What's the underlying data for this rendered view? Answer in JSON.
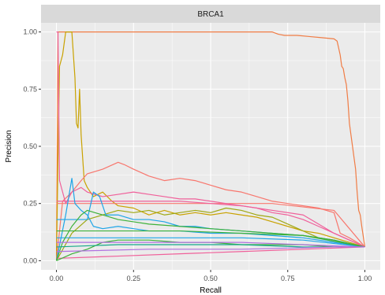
{
  "chart_data": {
    "type": "line",
    "facet_title": "BRCA1",
    "xlabel": "Recall",
    "ylabel": "Precision",
    "xlim": [
      -0.05,
      1.05
    ],
    "ylim": [
      -0.04,
      1.04
    ],
    "x_ticks": [
      0,
      0.25,
      0.5,
      0.75,
      1
    ],
    "x_tick_labels": [
      "0.00",
      "0.25",
      "0.50",
      "0.75",
      "1.00"
    ],
    "y_ticks": [
      0,
      0.25,
      0.5,
      0.75,
      1
    ],
    "y_tick_labels": [
      "0.00",
      "0.25",
      "0.50",
      "0.75",
      "1.00"
    ],
    "grid": true,
    "legend": "none",
    "colors": {
      "panel_bg": "#ebebeb",
      "strip_bg": "#d9d9d9",
      "grid_major": "#ffffff",
      "salmon": "#f8766d",
      "orange": "#f07c45",
      "gold": "#c9a200",
      "olive": "#9fa814",
      "green": "#3db13a",
      "teal": "#14a88a",
      "blue": "#1ea5e8",
      "purple": "#b070e0",
      "pink": "#f0609a"
    },
    "series": [
      {
        "color": "#f07c45",
        "points": [
          [
            0.0,
            0.02
          ],
          [
            0.005,
            1.0
          ],
          [
            0.1,
            1.0
          ],
          [
            0.3,
            1.0
          ],
          [
            0.5,
            1.0
          ],
          [
            0.7,
            1.0
          ],
          [
            0.72,
            0.99
          ],
          [
            0.74,
            0.985
          ],
          [
            0.78,
            0.985
          ],
          [
            0.82,
            0.98
          ],
          [
            0.86,
            0.975
          ],
          [
            0.9,
            0.97
          ],
          [
            0.91,
            0.96
          ],
          [
            0.915,
            0.93
          ],
          [
            0.92,
            0.9
          ],
          [
            0.925,
            0.85
          ],
          [
            0.93,
            0.84
          ],
          [
            0.935,
            0.8
          ],
          [
            0.94,
            0.77
          ],
          [
            0.945,
            0.7
          ],
          [
            0.95,
            0.6
          ],
          [
            0.955,
            0.55
          ],
          [
            0.96,
            0.5
          ],
          [
            0.965,
            0.45
          ],
          [
            0.97,
            0.4
          ],
          [
            0.975,
            0.3
          ],
          [
            0.98,
            0.22
          ],
          [
            0.985,
            0.2
          ],
          [
            0.99,
            0.15
          ],
          [
            1.0,
            0.06
          ]
        ]
      },
      {
        "color": "#c9a200",
        "points": [
          [
            0.0,
            0.0
          ],
          [
            0.005,
            0.45
          ],
          [
            0.01,
            0.85
          ],
          [
            0.02,
            0.9
          ],
          [
            0.03,
            1.0
          ],
          [
            0.05,
            1.0
          ],
          [
            0.06,
            0.8
          ],
          [
            0.065,
            0.6
          ],
          [
            0.07,
            0.58
          ],
          [
            0.075,
            0.75
          ],
          [
            0.08,
            0.55
          ],
          [
            0.09,
            0.35
          ],
          [
            0.1,
            0.32
          ],
          [
            0.12,
            0.28
          ],
          [
            0.15,
            0.3
          ],
          [
            0.18,
            0.26
          ],
          [
            0.2,
            0.24
          ],
          [
            0.25,
            0.23
          ],
          [
            0.3,
            0.2
          ],
          [
            0.35,
            0.22
          ],
          [
            0.4,
            0.2
          ],
          [
            0.45,
            0.21
          ],
          [
            0.5,
            0.2
          ],
          [
            0.55,
            0.21
          ],
          [
            0.6,
            0.2
          ],
          [
            0.65,
            0.19
          ],
          [
            0.7,
            0.17
          ],
          [
            0.75,
            0.15
          ],
          [
            0.8,
            0.13
          ],
          [
            0.85,
            0.12
          ],
          [
            0.9,
            0.1
          ],
          [
            0.95,
            0.08
          ],
          [
            1.0,
            0.06
          ]
        ]
      },
      {
        "color": "#9fa814",
        "points": [
          [
            0.0,
            0.0
          ],
          [
            0.05,
            0.12
          ],
          [
            0.1,
            0.18
          ],
          [
            0.15,
            0.2
          ],
          [
            0.2,
            0.22
          ],
          [
            0.25,
            0.21
          ],
          [
            0.3,
            0.22
          ],
          [
            0.35,
            0.2
          ],
          [
            0.4,
            0.21
          ],
          [
            0.45,
            0.22
          ],
          [
            0.5,
            0.21
          ],
          [
            0.55,
            0.23
          ],
          [
            0.6,
            0.22
          ],
          [
            0.65,
            0.2
          ],
          [
            0.7,
            0.19
          ],
          [
            0.75,
            0.16
          ],
          [
            0.8,
            0.13
          ],
          [
            0.85,
            0.1
          ],
          [
            0.9,
            0.09
          ],
          [
            0.95,
            0.07
          ],
          [
            1.0,
            0.06
          ]
        ]
      },
      {
        "color": "#f8766d",
        "points": [
          [
            0.0,
            0.0
          ],
          [
            0.02,
            0.26
          ],
          [
            0.05,
            0.3
          ],
          [
            0.08,
            0.35
          ],
          [
            0.1,
            0.38
          ],
          [
            0.15,
            0.4
          ],
          [
            0.2,
            0.43
          ],
          [
            0.22,
            0.42
          ],
          [
            0.25,
            0.4
          ],
          [
            0.3,
            0.37
          ],
          [
            0.35,
            0.35
          ],
          [
            0.4,
            0.36
          ],
          [
            0.45,
            0.35
          ],
          [
            0.5,
            0.33
          ],
          [
            0.55,
            0.31
          ],
          [
            0.6,
            0.3
          ],
          [
            0.65,
            0.28
          ],
          [
            0.7,
            0.26
          ],
          [
            0.75,
            0.25
          ],
          [
            0.8,
            0.24
          ],
          [
            0.85,
            0.23
          ],
          [
            0.9,
            0.21
          ],
          [
            0.92,
            0.12
          ],
          [
            0.95,
            0.1
          ],
          [
            1.0,
            0.06
          ]
        ]
      },
      {
        "color": "#f8766d",
        "points": [
          [
            0.0,
            0.25
          ],
          [
            0.1,
            0.25
          ],
          [
            0.3,
            0.25
          ],
          [
            0.5,
            0.25
          ],
          [
            0.7,
            0.25
          ],
          [
            0.9,
            0.22
          ],
          [
            1.0,
            0.06
          ]
        ]
      },
      {
        "color": "#f0609a",
        "points": [
          [
            0.0,
            1.0
          ],
          [
            0.005,
            1.0
          ],
          [
            0.01,
            0.35
          ],
          [
            0.02,
            0.3
          ],
          [
            0.03,
            0.25
          ],
          [
            0.05,
            0.3
          ],
          [
            0.08,
            0.32
          ],
          [
            0.1,
            0.3
          ],
          [
            0.15,
            0.28
          ],
          [
            0.2,
            0.29
          ],
          [
            0.25,
            0.3
          ],
          [
            0.3,
            0.29
          ],
          [
            0.35,
            0.28
          ],
          [
            0.4,
            0.27
          ],
          [
            0.45,
            0.27
          ],
          [
            0.5,
            0.26
          ],
          [
            0.55,
            0.25
          ],
          [
            0.6,
            0.24
          ],
          [
            0.65,
            0.23
          ],
          [
            0.7,
            0.21
          ],
          [
            0.75,
            0.2
          ],
          [
            0.8,
            0.18
          ],
          [
            0.85,
            0.15
          ],
          [
            0.9,
            0.12
          ],
          [
            0.95,
            0.09
          ],
          [
            1.0,
            0.06
          ]
        ]
      },
      {
        "color": "#f0609a",
        "points": [
          [
            0.0,
            0.26
          ],
          [
            0.2,
            0.26
          ],
          [
            0.4,
            0.26
          ],
          [
            0.5,
            0.25
          ],
          [
            0.6,
            0.24
          ],
          [
            0.8,
            0.2
          ],
          [
            0.9,
            0.12
          ],
          [
            1.0,
            0.06
          ]
        ]
      },
      {
        "color": "#f0609a",
        "points": [
          [
            0.0,
            0.01
          ],
          [
            0.2,
            0.02
          ],
          [
            0.4,
            0.03
          ],
          [
            0.6,
            0.04
          ],
          [
            0.8,
            0.05
          ],
          [
            1.0,
            0.06
          ]
        ]
      },
      {
        "color": "#1ea5e8",
        "points": [
          [
            0.0,
            0.18
          ],
          [
            0.05,
            0.18
          ],
          [
            0.1,
            0.18
          ],
          [
            0.12,
            0.3
          ],
          [
            0.14,
            0.28
          ],
          [
            0.16,
            0.2
          ],
          [
            0.2,
            0.2
          ],
          [
            0.25,
            0.18
          ],
          [
            0.3,
            0.18
          ],
          [
            0.35,
            0.17
          ],
          [
            0.4,
            0.15
          ],
          [
            0.45,
            0.15
          ],
          [
            0.5,
            0.14
          ],
          [
            0.6,
            0.13
          ],
          [
            0.7,
            0.12
          ],
          [
            0.8,
            0.11
          ],
          [
            0.9,
            0.09
          ],
          [
            1.0,
            0.06
          ]
        ]
      },
      {
        "color": "#1ea5e8",
        "points": [
          [
            0.0,
            0.0
          ],
          [
            0.03,
            0.2
          ],
          [
            0.05,
            0.36
          ],
          [
            0.06,
            0.25
          ],
          [
            0.08,
            0.22
          ],
          [
            0.1,
            0.2
          ],
          [
            0.12,
            0.15
          ],
          [
            0.15,
            0.14
          ],
          [
            0.2,
            0.15
          ],
          [
            0.25,
            0.14
          ],
          [
            0.3,
            0.13
          ],
          [
            0.4,
            0.13
          ],
          [
            0.5,
            0.12
          ],
          [
            0.6,
            0.12
          ],
          [
            0.7,
            0.11
          ],
          [
            0.8,
            0.1
          ],
          [
            0.9,
            0.08
          ],
          [
            1.0,
            0.06
          ]
        ]
      },
      {
        "color": "#1ea5e8",
        "points": [
          [
            0.0,
            0.1
          ],
          [
            0.2,
            0.1
          ],
          [
            0.4,
            0.1
          ],
          [
            0.6,
            0.1
          ],
          [
            0.8,
            0.09
          ],
          [
            1.0,
            0.06
          ]
        ]
      },
      {
        "color": "#3db13a",
        "points": [
          [
            0.0,
            0.0
          ],
          [
            0.02,
            0.08
          ],
          [
            0.05,
            0.15
          ],
          [
            0.08,
            0.2
          ],
          [
            0.1,
            0.22
          ],
          [
            0.15,
            0.2
          ],
          [
            0.2,
            0.18
          ],
          [
            0.25,
            0.17
          ],
          [
            0.3,
            0.16
          ],
          [
            0.4,
            0.15
          ],
          [
            0.5,
            0.14
          ],
          [
            0.6,
            0.13
          ],
          [
            0.7,
            0.12
          ],
          [
            0.8,
            0.11
          ],
          [
            0.9,
            0.09
          ],
          [
            1.0,
            0.06
          ]
        ]
      },
      {
        "color": "#3db13a",
        "points": [
          [
            0.0,
            0.13
          ],
          [
            0.2,
            0.13
          ],
          [
            0.4,
            0.13
          ],
          [
            0.6,
            0.12
          ],
          [
            0.8,
            0.11
          ],
          [
            1.0,
            0.06
          ]
        ]
      },
      {
        "color": "#3db13a",
        "points": [
          [
            0.0,
            0.0
          ],
          [
            0.05,
            0.03
          ],
          [
            0.1,
            0.05
          ],
          [
            0.15,
            0.08
          ],
          [
            0.2,
            0.09
          ],
          [
            0.3,
            0.09
          ],
          [
            0.4,
            0.08
          ],
          [
            0.5,
            0.08
          ],
          [
            0.6,
            0.07
          ],
          [
            0.7,
            0.07
          ],
          [
            0.8,
            0.07
          ],
          [
            0.9,
            0.06
          ],
          [
            1.0,
            0.06
          ]
        ]
      },
      {
        "color": "#14a88a",
        "points": [
          [
            0.0,
            0.06
          ],
          [
            0.2,
            0.07
          ],
          [
            0.4,
            0.07
          ],
          [
            0.6,
            0.07
          ],
          [
            0.8,
            0.06
          ],
          [
            1.0,
            0.06
          ]
        ]
      },
      {
        "color": "#b070e0",
        "points": [
          [
            0.0,
            0.08
          ],
          [
            0.2,
            0.08
          ],
          [
            0.4,
            0.08
          ],
          [
            0.6,
            0.08
          ],
          [
            0.8,
            0.07
          ],
          [
            1.0,
            0.06
          ]
        ]
      },
      {
        "color": "#b070e0",
        "points": [
          [
            0.0,
            0.04
          ],
          [
            0.3,
            0.05
          ],
          [
            0.6,
            0.05
          ],
          [
            0.9,
            0.06
          ],
          [
            1.0,
            0.06
          ]
        ]
      }
    ]
  }
}
